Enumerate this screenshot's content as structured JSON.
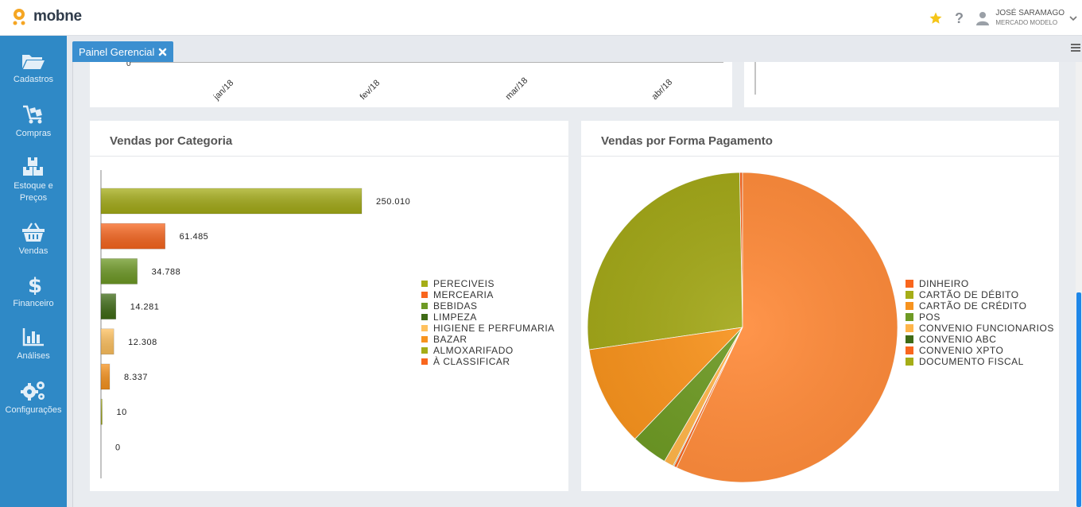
{
  "app": {
    "logo_text": "mobne"
  },
  "user": {
    "name": "JOSÉ SARAMAGO",
    "org": "MERCADO MODELO"
  },
  "topbar_icons": [
    "star-icon",
    "help-icon",
    "user-icon",
    "chevron-down-icon"
  ],
  "sidebar": {
    "items": [
      {
        "label": "Cadastros",
        "icon": "folder-icon"
      },
      {
        "label": "Compras",
        "icon": "cart-icon"
      },
      {
        "label": "Estoque e",
        "label2": "Preços",
        "icon": "boxes-icon"
      },
      {
        "label": "Vendas",
        "icon": "basket-icon"
      },
      {
        "label": "Financeiro",
        "icon": "dollar-icon"
      },
      {
        "label": "Análises",
        "icon": "bar-chart-icon"
      },
      {
        "label": "Configurações",
        "icon": "gears-icon"
      }
    ]
  },
  "tabs": [
    {
      "label": "Painel Gerencial",
      "close_icon": "close-icon"
    }
  ],
  "colors": {
    "sidebar": "#2f89c6",
    "tab": "#3b8fd0",
    "accent": "#1f87e8"
  },
  "top_chart": {
    "x_ticks": [
      "jan/18",
      "fev/18",
      "mar/18",
      "abr/18"
    ],
    "y_tick_partial": "0"
  },
  "chart_data": [
    {
      "type": "bar",
      "orientation": "horizontal",
      "title": "Vendas por Categoria",
      "categories": [
        "PERECIVEIS",
        "MERCEARIA",
        "BEBIDAS",
        "LIMPEZA",
        "HIGIENE E PERFUMARIA",
        "BAZAR",
        "ALMOXARIFADO",
        "À CLASSIFICAR"
      ],
      "values": [
        250010,
        61485,
        34788,
        14281,
        12308,
        8337,
        10,
        0
      ],
      "value_labels": [
        "250.010",
        "61.485",
        "34.788",
        "14.281",
        "12.308",
        "8.337",
        "10",
        "0"
      ],
      "colors": [
        "#a5ad17",
        "#f9661e",
        "#6e9a25",
        "#3f6b16",
        "#ffc15e",
        "#f7931e",
        "#a5ad17",
        "#f9661e"
      ],
      "legend": "right",
      "grid": false
    },
    {
      "type": "pie",
      "title": "Vendas por Forma Pagamento",
      "categories": [
        "DINHEIRO",
        "CARTÃO DE DÉBITO",
        "CARTÃO DE CRÉDITO",
        "POS",
        "CONVENIO FUNCIONARIOS",
        "CONVENIO ABC",
        "CONVENIO XPTO",
        "DOCUMENTO FISCAL"
      ],
      "values": [
        0.3,
        27.0,
        10.5,
        3.8,
        1.0,
        0.1,
        0.3,
        57.0
      ],
      "colors": [
        "#f9661e",
        "#a5ad17",
        "#f7931e",
        "#6e9a25",
        "#ffb54a",
        "#3f6b16",
        "#f9661e",
        "#a5ad17"
      ],
      "slice_colors_drawn": [
        "#f9661e",
        "#a3a81a",
        "#f7931e",
        "#6e9a25",
        "#ffb54a",
        "#3f6b16",
        "#f9661e",
        "#ff8c3c"
      ],
      "legend": "right"
    }
  ]
}
